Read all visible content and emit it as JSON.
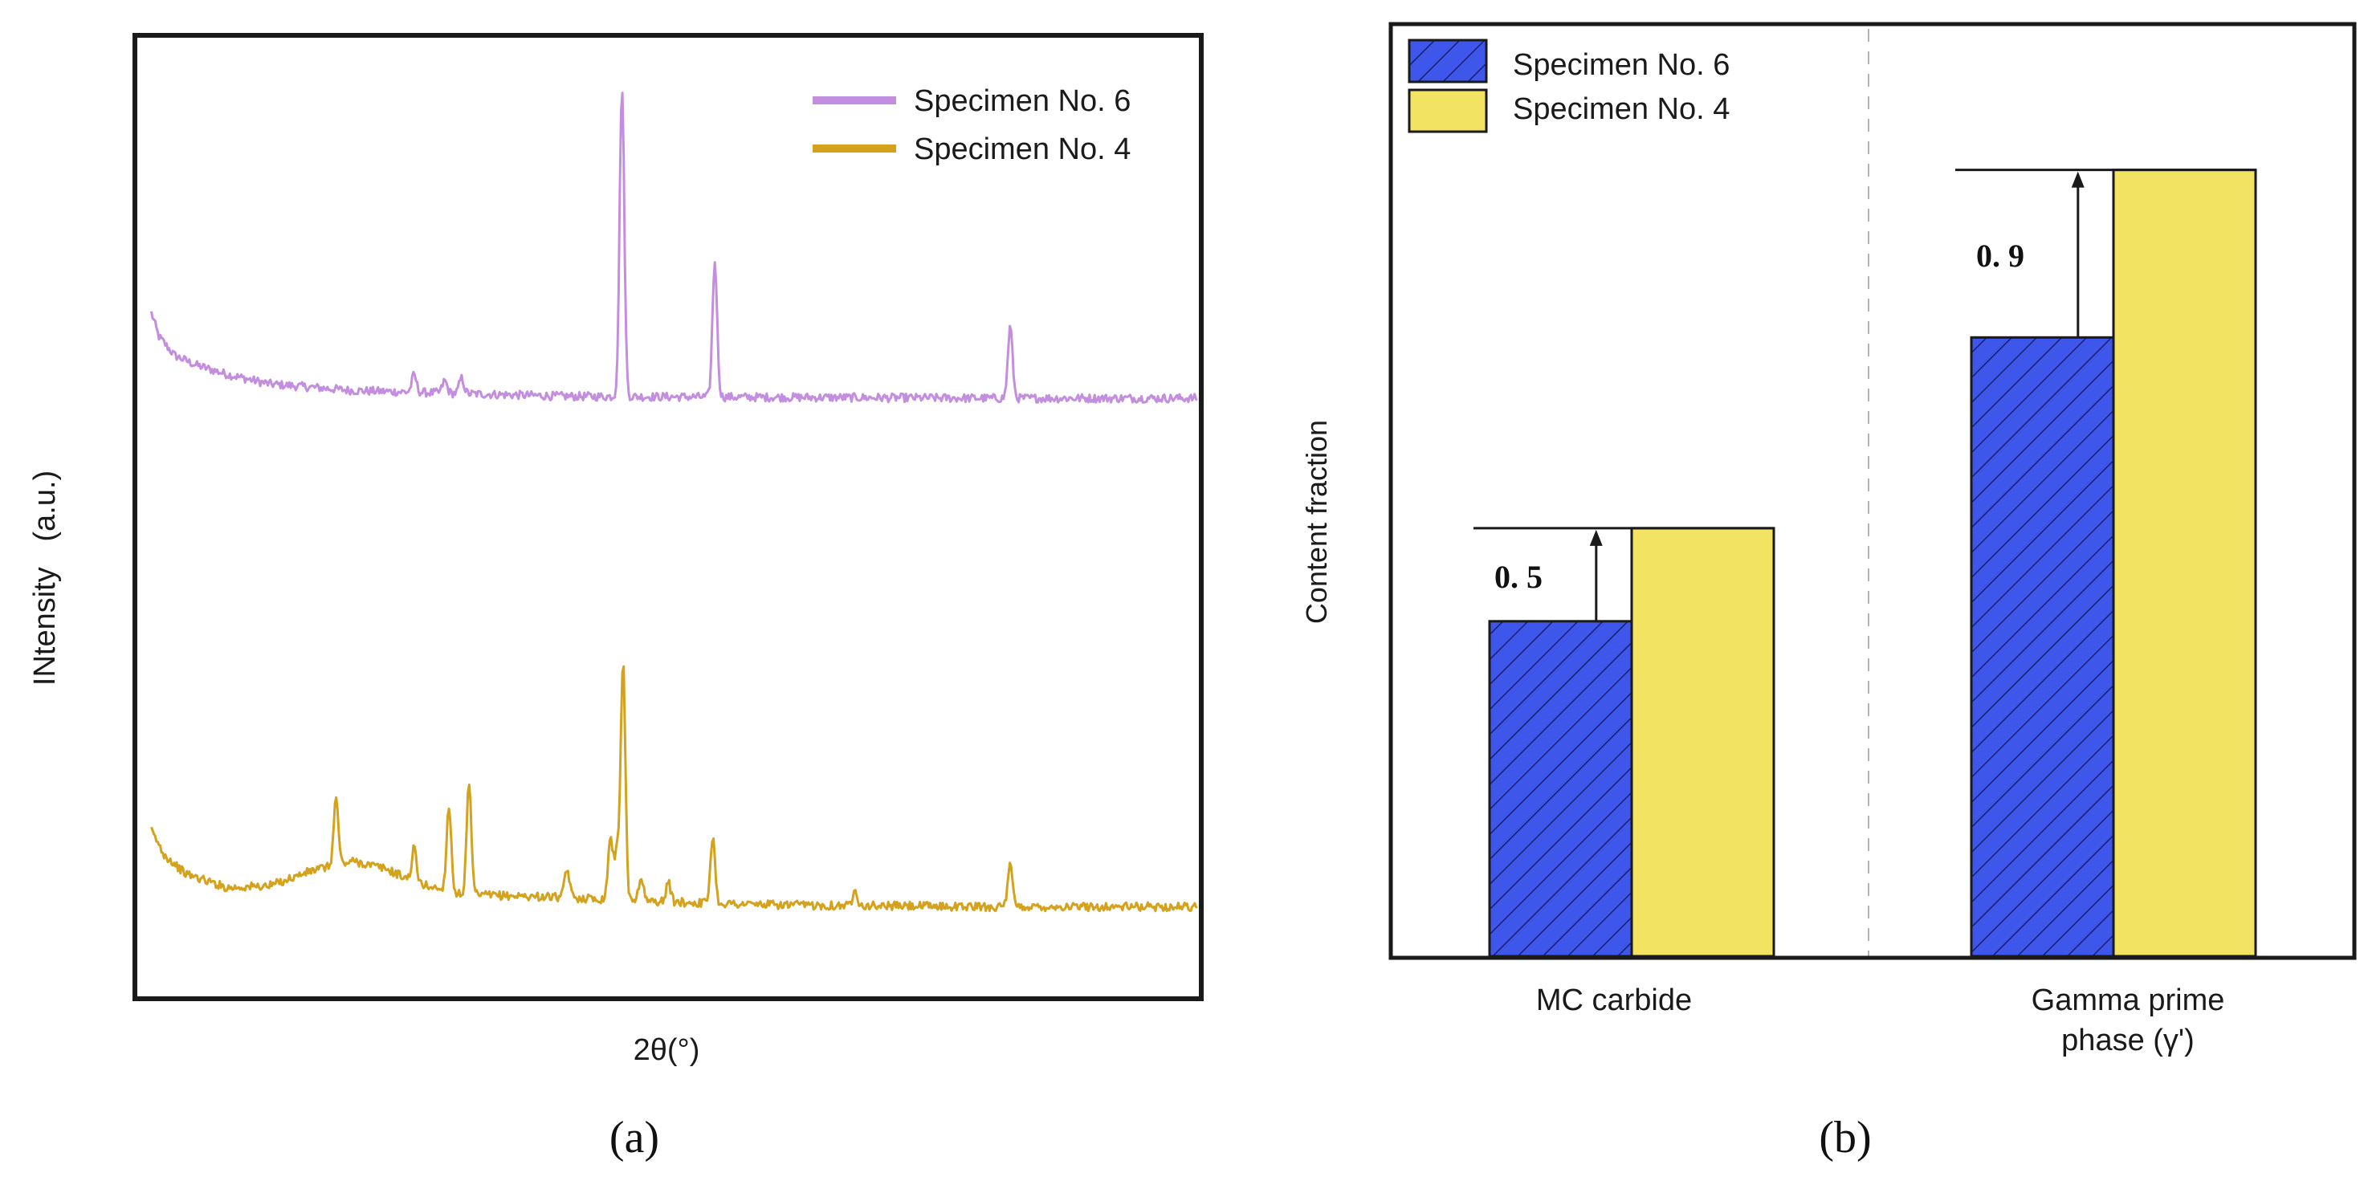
{
  "chart_data": [
    {
      "panel": "(a)",
      "type": "line",
      "title": "",
      "xlabel": "2θ(°)",
      "ylabel": "INtensity   (a.u.)",
      "grid": false,
      "legend_position": "top-right",
      "xlim": [
        0,
        100
      ],
      "ylim": [
        0,
        100
      ],
      "colors": {
        "specimen6": "#c38ee0",
        "specimen4": "#d4a21c"
      },
      "series": [
        {
          "name": "Specimen No. 6",
          "baseline": 62.5,
          "points": [
            [
              0.8,
              71.5
            ],
            [
              1.5,
              69.0
            ],
            [
              3,
              67.0
            ],
            [
              5,
              66.0
            ],
            [
              8,
              65.0
            ],
            [
              12,
              64.0
            ],
            [
              20,
              63.3
            ],
            [
              40,
              62.7
            ],
            [
              60,
              62.6
            ],
            [
              80,
              62.5
            ],
            [
              100,
              62.5
            ]
          ],
          "peaks": [
            {
              "x": 25.7,
              "height": 1.8
            },
            {
              "x": 28.6,
              "height": 1.3
            },
            {
              "x": 30.2,
              "height": 1.6
            },
            {
              "x": 45.4,
              "height": 32.5
            },
            {
              "x": 54.2,
              "height": 14.2
            },
            {
              "x": 82.2,
              "height": 7.5
            }
          ]
        },
        {
          "name": "Specimen No. 4",
          "baseline": 9.0,
          "points": [
            [
              0.8,
              17.0
            ],
            [
              2,
              14.5
            ],
            [
              4,
              12.5
            ],
            [
              8,
              11.0
            ],
            [
              12,
              11.2
            ],
            [
              16,
              12.8
            ],
            [
              20,
              13.8
            ],
            [
              23,
              13.0
            ],
            [
              26,
              11.5
            ],
            [
              30,
              10.3
            ],
            [
              40,
              10.0
            ],
            [
              50,
              9.5
            ],
            [
              60,
              9.2
            ],
            [
              80,
              9.0
            ],
            [
              100,
              9.0
            ]
          ],
          "peaks": [
            {
              "x": 18.3,
              "height": 7.0
            },
            {
              "x": 25.7,
              "height": 3.5
            },
            {
              "x": 29.0,
              "height": 9.0
            },
            {
              "x": 30.9,
              "height": 11.5
            },
            {
              "x": 40.2,
              "height": 3.0
            },
            {
              "x": 44.3,
              "height": 6.5
            },
            {
              "x": 44.9,
              "height": 5.0
            },
            {
              "x": 45.5,
              "height": 25.0
            },
            {
              "x": 47.2,
              "height": 2.5
            },
            {
              "x": 49.8,
              "height": 2.0
            },
            {
              "x": 54.0,
              "height": 7.0
            },
            {
              "x": 67.5,
              "height": 1.8
            },
            {
              "x": 82.2,
              "height": 4.3
            }
          ]
        }
      ]
    },
    {
      "panel": "(b)",
      "type": "bar",
      "title": "",
      "xlabel": "",
      "ylabel": "Content fraction",
      "categories": [
        "MC carbide",
        "Gamma prime phase (γ')"
      ],
      "category_labels": [
        [
          "MC carbide"
        ],
        [
          "Gamma prime",
          "phase (γ')"
        ]
      ],
      "ylim": [
        0,
        100
      ],
      "grid": false,
      "legend_position": "top-left",
      "series": [
        {
          "name": "Specimen No. 6",
          "values": [
            36.0,
            66.5
          ],
          "color": "#3e57ea",
          "pattern": "diagonal-hatch"
        },
        {
          "name": "Specimen No. 4",
          "values": [
            46.0,
            84.5
          ],
          "color": "#f2e462",
          "pattern": "solid"
        }
      ],
      "annotations": [
        {
          "category": "MC carbide",
          "text": "0. 5"
        },
        {
          "category": "Gamma prime phase (γ')",
          "text": "0. 9"
        }
      ]
    }
  ],
  "captions": {
    "a": "(a)",
    "b": "(b)"
  }
}
